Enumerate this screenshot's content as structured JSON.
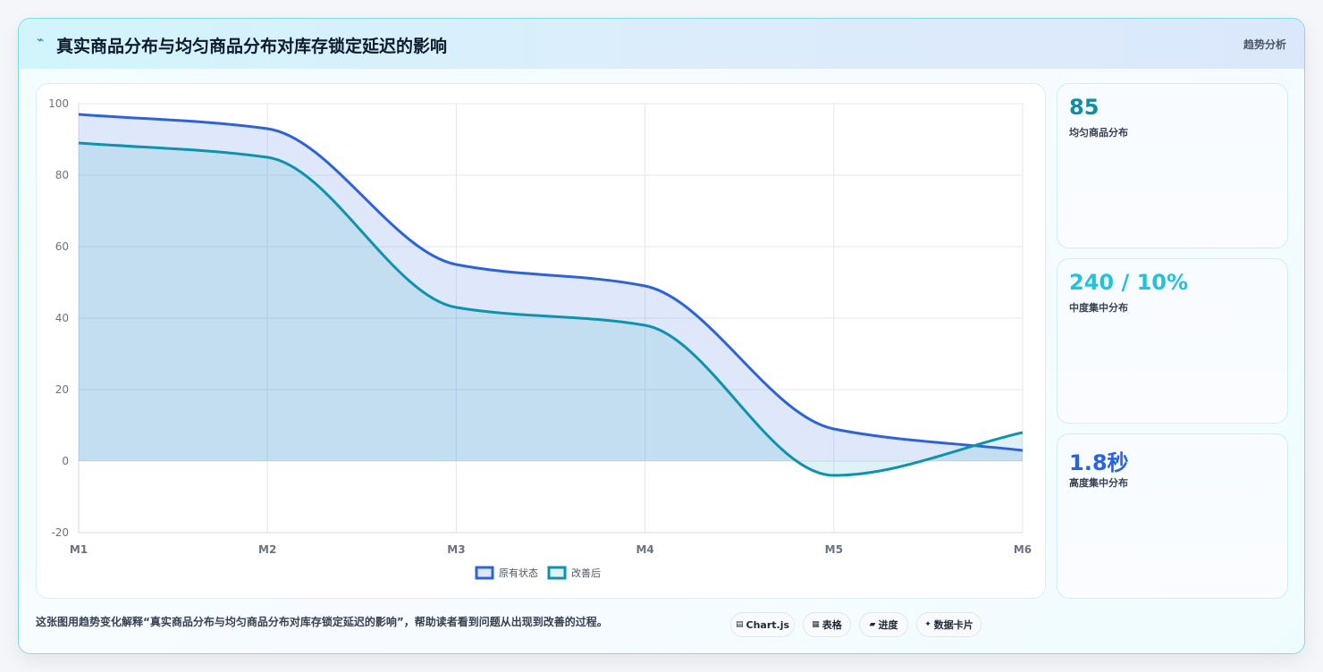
{
  "header": {
    "icon": "trend-lightning-icon",
    "title": "真实商品分布与均匀商品分布对库存锁定延迟的影响",
    "tag": "趋势分析"
  },
  "chart_data": {
    "type": "area",
    "x": [
      "M1",
      "M2",
      "M3",
      "M4",
      "M5",
      "M6"
    ],
    "series": [
      {
        "name": "原有状态",
        "values": [
          97,
          93,
          55,
          49,
          9,
          3
        ],
        "color": "#2d62d8",
        "fill": "rgba(96,138,235,0.2)"
      },
      {
        "name": "改善后",
        "values": [
          89,
          85,
          43,
          38,
          -4,
          8
        ],
        "color": "#0e93ad",
        "fill": "rgba(42,160,190,0.15)"
      }
    ],
    "ylim": [
      -20,
      100
    ],
    "yticks": [
      100,
      80,
      60,
      40,
      20,
      0,
      -20
    ],
    "grid": true,
    "legend": "bottom"
  },
  "kpis": [
    {
      "value": "85",
      "label": "均匀商品分布",
      "color": "#0e8fa6"
    },
    {
      "value": "240 / 10%",
      "label": "中度集中分布",
      "color": "#22c2dd"
    },
    {
      "value": "1.8秒",
      "label": "高度集中分布",
      "color": "#2563eb"
    }
  ],
  "footer": {
    "caption": "这张图用趋势变化解释“真实商品分布与均匀商品分布对库存锁定延迟的影响”，帮助读者看到问题从出现到改善的过程。",
    "pills": [
      {
        "icon": "chart-icon",
        "glyph": "▤",
        "label": "Chart.js"
      },
      {
        "icon": "table-icon",
        "glyph": "▦",
        "label": "表格"
      },
      {
        "icon": "progress-icon",
        "glyph": "▰",
        "label": "进度"
      },
      {
        "icon": "sparkle-icon",
        "glyph": "✦",
        "label": "数据卡片"
      }
    ]
  }
}
